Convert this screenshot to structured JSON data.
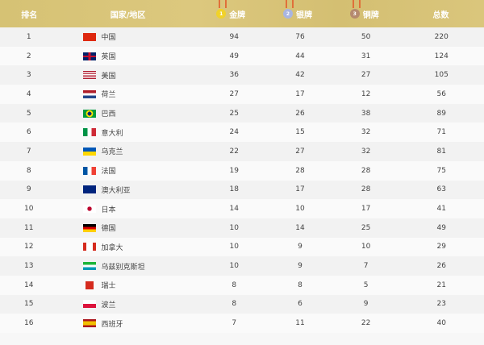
{
  "header": {
    "rank": "排名",
    "country": "国家/地区",
    "gold": "金牌",
    "silver": "银牌",
    "bronze": "铜牌",
    "total": "总数"
  },
  "colors": {
    "header": "#d6c274",
    "gold": "#f1d22a",
    "silver": "#a9b5e0",
    "bronze": "#b58a6e"
  },
  "rows": [
    {
      "rank": "1",
      "country": "中国",
      "flag": "cn",
      "gold": "94",
      "silver": "76",
      "bronze": "50",
      "total": "220"
    },
    {
      "rank": "2",
      "country": "英国",
      "flag": "gb",
      "gold": "49",
      "silver": "44",
      "bronze": "31",
      "total": "124"
    },
    {
      "rank": "3",
      "country": "美国",
      "flag": "us",
      "gold": "36",
      "silver": "42",
      "bronze": "27",
      "total": "105"
    },
    {
      "rank": "4",
      "country": "荷兰",
      "flag": "nl",
      "gold": "27",
      "silver": "17",
      "bronze": "12",
      "total": "56"
    },
    {
      "rank": "5",
      "country": "巴西",
      "flag": "br",
      "gold": "25",
      "silver": "26",
      "bronze": "38",
      "total": "89"
    },
    {
      "rank": "6",
      "country": "意大利",
      "flag": "it",
      "gold": "24",
      "silver": "15",
      "bronze": "32",
      "total": "71"
    },
    {
      "rank": "7",
      "country": "乌克兰",
      "flag": "ua",
      "gold": "22",
      "silver": "27",
      "bronze": "32",
      "total": "81"
    },
    {
      "rank": "8",
      "country": "法国",
      "flag": "fr",
      "gold": "19",
      "silver": "28",
      "bronze": "28",
      "total": "75"
    },
    {
      "rank": "9",
      "country": "澳大利亚",
      "flag": "au",
      "gold": "18",
      "silver": "17",
      "bronze": "28",
      "total": "63"
    },
    {
      "rank": "10",
      "country": "日本",
      "flag": "jp",
      "gold": "14",
      "silver": "10",
      "bronze": "17",
      "total": "41"
    },
    {
      "rank": "11",
      "country": "德国",
      "flag": "de",
      "gold": "10",
      "silver": "14",
      "bronze": "25",
      "total": "49"
    },
    {
      "rank": "12",
      "country": "加拿大",
      "flag": "ca",
      "gold": "10",
      "silver": "9",
      "bronze": "10",
      "total": "29"
    },
    {
      "rank": "13",
      "country": "乌兹别克斯坦",
      "flag": "uz",
      "gold": "10",
      "silver": "9",
      "bronze": "7",
      "total": "26"
    },
    {
      "rank": "14",
      "country": "瑞士",
      "flag": "ch",
      "gold": "8",
      "silver": "8",
      "bronze": "5",
      "total": "21"
    },
    {
      "rank": "15",
      "country": "波兰",
      "flag": "pl",
      "gold": "8",
      "silver": "6",
      "bronze": "9",
      "total": "23"
    },
    {
      "rank": "16",
      "country": "西班牙",
      "flag": "es",
      "gold": "7",
      "silver": "11",
      "bronze": "22",
      "total": "40"
    }
  ]
}
